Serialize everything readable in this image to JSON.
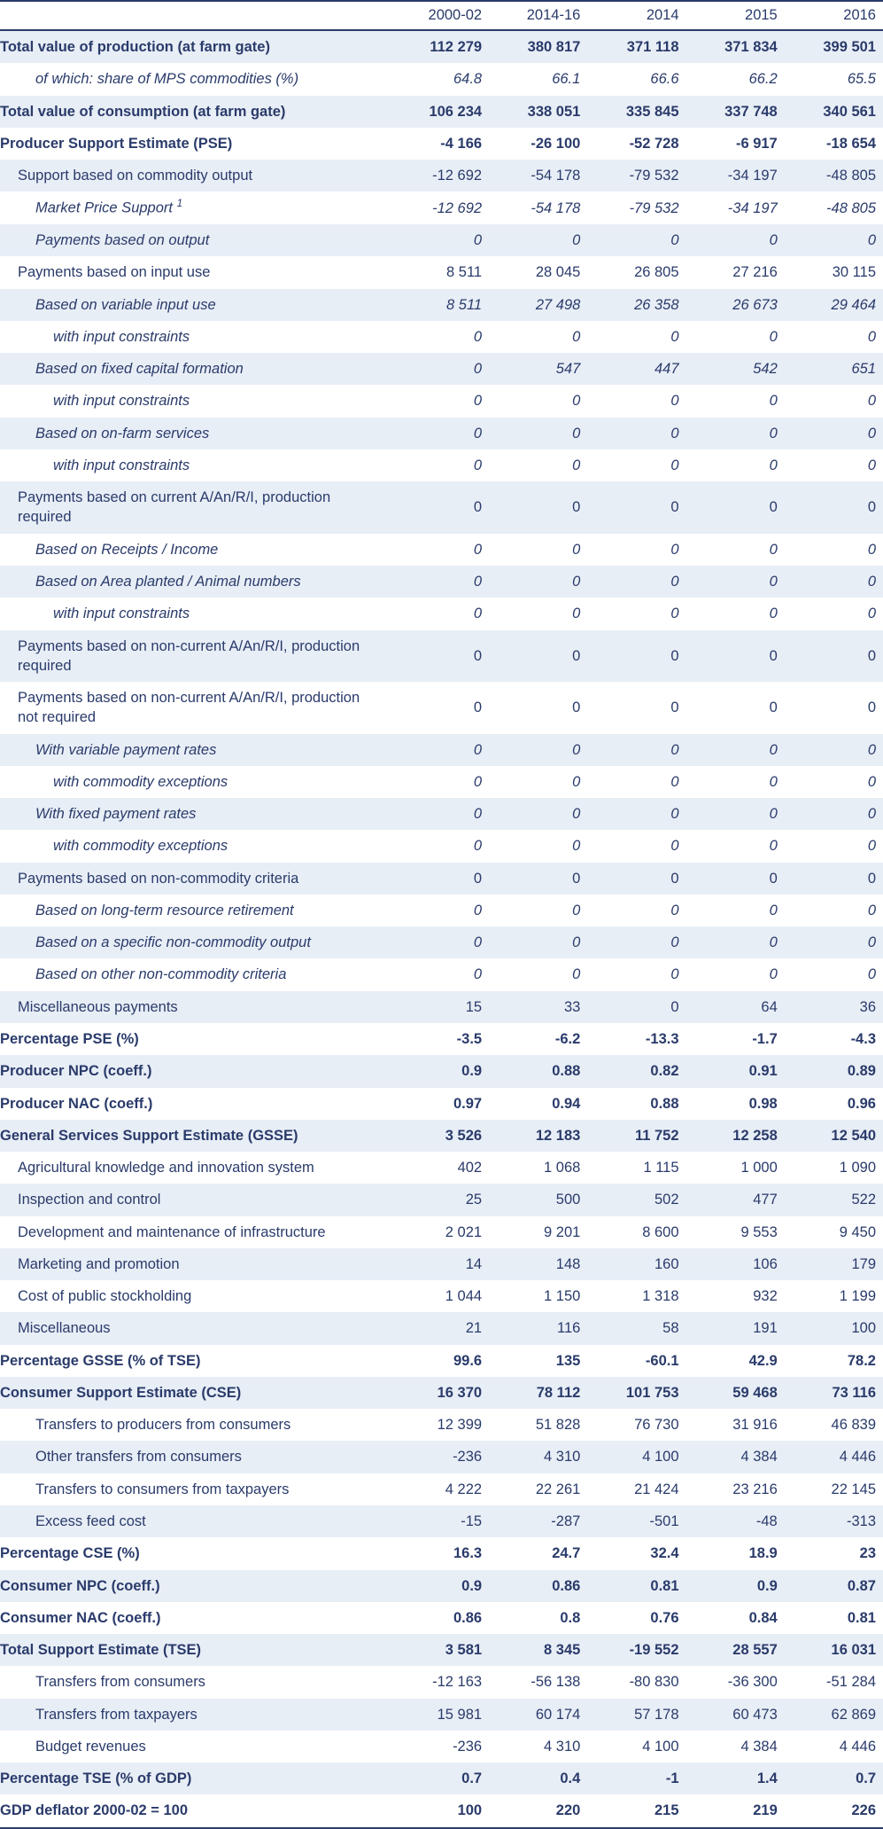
{
  "table": {
    "background_color": "#ffffff",
    "shade_color": "#e8eef6",
    "text_color": "#2a3b6b",
    "border_color": "#2a3b6b",
    "font_size_pt": 12,
    "columns": [
      "",
      "2000-02",
      "2014-16",
      "2014",
      "2015",
      "2016"
    ],
    "rows": [
      {
        "label": "Total value of production (at farm gate)",
        "v": [
          "112 279",
          "380 817",
          "371 118",
          "371 834",
          "399 501"
        ],
        "bold": true,
        "shade": true
      },
      {
        "label": "of which: share of MPS commodities (%)",
        "v": [
          "64.8",
          "66.1",
          "66.6",
          "66.2",
          "65.5"
        ],
        "italic": true,
        "indent": 2
      },
      {
        "label": "Total value of consumption (at farm gate)",
        "v": [
          "106 234",
          "338 051",
          "335 845",
          "337 748",
          "340 561"
        ],
        "bold": true,
        "shade": true
      },
      {
        "label": "Producer Support Estimate (PSE)",
        "v": [
          "-4 166",
          "-26 100",
          "-52 728",
          "-6 917",
          "-18 654"
        ],
        "bold": true
      },
      {
        "label": "Support based on commodity output",
        "v": [
          "-12 692",
          "-54 178",
          "-79 532",
          "-34 197",
          "-48 805"
        ],
        "indent": 1,
        "shade": true
      },
      {
        "label": "Market Price Support",
        "sup": "1",
        "v": [
          "-12 692",
          "-54 178",
          "-79 532",
          "-34 197",
          "-48 805"
        ],
        "italic": true,
        "indent": 2
      },
      {
        "label": "Payments based on output",
        "v": [
          "0",
          "0",
          "0",
          "0",
          "0"
        ],
        "italic": true,
        "indent": 2,
        "shade": true
      },
      {
        "label": "Payments based on input use",
        "v": [
          "8 511",
          "28 045",
          "26 805",
          "27 216",
          "30 115"
        ],
        "indent": 1
      },
      {
        "label": "Based on variable input use",
        "v": [
          "8 511",
          "27 498",
          "26 358",
          "26 673",
          "29 464"
        ],
        "italic": true,
        "indent": 2,
        "shade": true
      },
      {
        "label": "with input constraints",
        "v": [
          "0",
          "0",
          "0",
          "0",
          "0"
        ],
        "italic": true,
        "indent": 3
      },
      {
        "label": "Based on fixed capital formation",
        "v": [
          "0",
          "547",
          "447",
          "542",
          "651"
        ],
        "italic": true,
        "indent": 2,
        "shade": true
      },
      {
        "label": "with input constraints",
        "v": [
          "0",
          "0",
          "0",
          "0",
          "0"
        ],
        "italic": true,
        "indent": 3
      },
      {
        "label": "Based on on-farm services",
        "v": [
          "0",
          "0",
          "0",
          "0",
          "0"
        ],
        "italic": true,
        "indent": 2,
        "shade": true
      },
      {
        "label": "with input constraints",
        "v": [
          "0",
          "0",
          "0",
          "0",
          "0"
        ],
        "italic": true,
        "indent": 3
      },
      {
        "label": "Payments based on current A/An/R/I, production required",
        "v": [
          "0",
          "0",
          "0",
          "0",
          "0"
        ],
        "indent": 1,
        "shade": true
      },
      {
        "label": "Based on Receipts / Income",
        "v": [
          "0",
          "0",
          "0",
          "0",
          "0"
        ],
        "italic": true,
        "indent": 2
      },
      {
        "label": "Based on Area planted / Animal numbers",
        "v": [
          "0",
          "0",
          "0",
          "0",
          "0"
        ],
        "italic": true,
        "indent": 2,
        "shade": true
      },
      {
        "label": "with input constraints",
        "v": [
          "0",
          "0",
          "0",
          "0",
          "0"
        ],
        "italic": true,
        "indent": 3
      },
      {
        "label": "Payments based on non-current A/An/R/I, production required",
        "v": [
          "0",
          "0",
          "0",
          "0",
          "0"
        ],
        "indent": 1,
        "shade": true
      },
      {
        "label": "Payments based on non-current A/An/R/I, production not required",
        "v": [
          "0",
          "0",
          "0",
          "0",
          "0"
        ],
        "indent": 1
      },
      {
        "label": "With variable payment rates",
        "v": [
          "0",
          "0",
          "0",
          "0",
          "0"
        ],
        "italic": true,
        "indent": 2,
        "shade": true
      },
      {
        "label": "with commodity exceptions",
        "v": [
          "0",
          "0",
          "0",
          "0",
          "0"
        ],
        "italic": true,
        "indent": 3
      },
      {
        "label": "With fixed payment rates",
        "v": [
          "0",
          "0",
          "0",
          "0",
          "0"
        ],
        "italic": true,
        "indent": 2,
        "shade": true
      },
      {
        "label": "with commodity exceptions",
        "v": [
          "0",
          "0",
          "0",
          "0",
          "0"
        ],
        "italic": true,
        "indent": 3
      },
      {
        "label": "Payments based on non-commodity criteria",
        "v": [
          "0",
          "0",
          "0",
          "0",
          "0"
        ],
        "indent": 1,
        "shade": true
      },
      {
        "label": "Based on long-term resource retirement",
        "v": [
          "0",
          "0",
          "0",
          "0",
          "0"
        ],
        "italic": true,
        "indent": 2
      },
      {
        "label": "Based on a specific non-commodity output",
        "v": [
          "0",
          "0",
          "0",
          "0",
          "0"
        ],
        "italic": true,
        "indent": 2,
        "shade": true
      },
      {
        "label": "Based on other non-commodity criteria",
        "v": [
          "0",
          "0",
          "0",
          "0",
          "0"
        ],
        "italic": true,
        "indent": 2
      },
      {
        "label": "Miscellaneous payments",
        "v": [
          "15",
          "33",
          "0",
          "64",
          "36"
        ],
        "indent": 1,
        "shade": true
      },
      {
        "label": "Percentage PSE (%)",
        "v": [
          "-3.5",
          "-6.2",
          "-13.3",
          "-1.7",
          "-4.3"
        ],
        "bold": true
      },
      {
        "label": "Producer NPC (coeff.)",
        "v": [
          "0.9",
          "0.88",
          "0.82",
          "0.91",
          "0.89"
        ],
        "bold": true,
        "shade": true
      },
      {
        "label": "Producer NAC (coeff.)",
        "v": [
          "0.97",
          "0.94",
          "0.88",
          "0.98",
          "0.96"
        ],
        "bold": true
      },
      {
        "label": "General Services Support Estimate (GSSE)",
        "v": [
          "3 526",
          "12 183",
          "11 752",
          "12 258",
          "12 540"
        ],
        "bold": true,
        "shade": true
      },
      {
        "label": "Agricultural knowledge and innovation system",
        "v": [
          "402",
          "1 068",
          "1 115",
          "1 000",
          "1 090"
        ],
        "indent": 1
      },
      {
        "label": "Inspection and control",
        "v": [
          "25",
          "500",
          "502",
          "477",
          "522"
        ],
        "indent": 1,
        "shade": true
      },
      {
        "label": "Development and maintenance of infrastructure",
        "v": [
          "2 021",
          "9 201",
          "8 600",
          "9 553",
          "9 450"
        ],
        "indent": 1
      },
      {
        "label": "Marketing and promotion",
        "v": [
          "14",
          "148",
          "160",
          "106",
          "179"
        ],
        "indent": 1,
        "shade": true
      },
      {
        "label": "Cost of public stockholding",
        "v": [
          "1 044",
          "1 150",
          "1 318",
          "932",
          "1 199"
        ],
        "indent": 1
      },
      {
        "label": "Miscellaneous",
        "v": [
          "21",
          "116",
          "58",
          "191",
          "100"
        ],
        "indent": 1,
        "shade": true
      },
      {
        "label": "Percentage GSSE (% of TSE)",
        "v": [
          "99.6",
          "135",
          "-60.1",
          "42.9",
          "78.2"
        ],
        "bold": true
      },
      {
        "label": "Consumer Support Estimate (CSE)",
        "v": [
          "16 370",
          "78 112",
          "101 753",
          "59 468",
          "73 116"
        ],
        "bold": true,
        "shade": true
      },
      {
        "label": "Transfers to producers from consumers",
        "v": [
          "12 399",
          "51 828",
          "76 730",
          "31 916",
          "46 839"
        ],
        "indent": 2
      },
      {
        "label": "Other transfers from consumers",
        "v": [
          "-236",
          "4 310",
          "4 100",
          "4 384",
          "4 446"
        ],
        "indent": 2,
        "shade": true
      },
      {
        "label": "Transfers to consumers from taxpayers",
        "v": [
          "4 222",
          "22 261",
          "21 424",
          "23 216",
          "22 145"
        ],
        "indent": 2
      },
      {
        "label": "Excess feed cost",
        "v": [
          "-15",
          "-287",
          "-501",
          "-48",
          "-313"
        ],
        "indent": 2,
        "shade": true
      },
      {
        "label": "Percentage CSE (%)",
        "v": [
          "16.3",
          "24.7",
          "32.4",
          "18.9",
          "23"
        ],
        "bold": true
      },
      {
        "label": "Consumer NPC (coeff.)",
        "v": [
          "0.9",
          "0.86",
          "0.81",
          "0.9",
          "0.87"
        ],
        "bold": true,
        "shade": true
      },
      {
        "label": "Consumer NAC (coeff.)",
        "v": [
          "0.86",
          "0.8",
          "0.76",
          "0.84",
          "0.81"
        ],
        "bold": true
      },
      {
        "label": "Total Support Estimate (TSE)",
        "v": [
          "3 581",
          "8 345",
          "-19 552",
          "28 557",
          "16 031"
        ],
        "bold": true,
        "shade": true
      },
      {
        "label": "Transfers from consumers",
        "v": [
          "-12 163",
          "-56 138",
          "-80 830",
          "-36 300",
          "-51 284"
        ],
        "indent": 2
      },
      {
        "label": "Transfers from taxpayers",
        "v": [
          "15 981",
          "60 174",
          "57 178",
          "60 473",
          "62 869"
        ],
        "indent": 2,
        "shade": true
      },
      {
        "label": "Budget revenues",
        "v": [
          "-236",
          "4 310",
          "4 100",
          "4 384",
          "4 446"
        ],
        "indent": 2
      },
      {
        "label": "Percentage TSE (% of GDP)",
        "v": [
          "0.7",
          "0.4",
          "-1",
          "1.4",
          "0.7"
        ],
        "bold": true,
        "shade": true
      },
      {
        "label": "GDP deflator 2000-02 = 100",
        "v": [
          "100",
          "220",
          "215",
          "219",
          "226"
        ],
        "bold": true,
        "border": true
      }
    ]
  }
}
